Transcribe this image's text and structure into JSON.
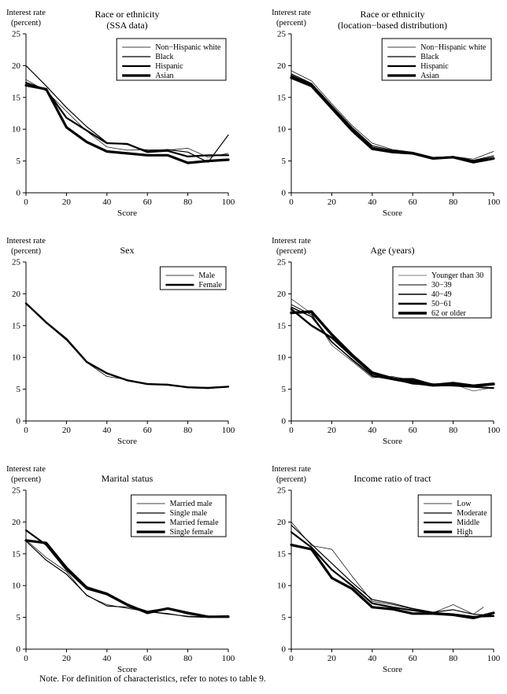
{
  "note": "Note. For definition of characteristics, refer to notes to table 9.",
  "line_color": "#000000",
  "background_color": "#ffffff",
  "chart_data": [
    {
      "type": "line",
      "title": "Race or ethnicity",
      "subtitle": "(SSA data)",
      "xlabel": "Score",
      "ylabel": [
        "Interest rate",
        "(percent)"
      ],
      "xlim": [
        0,
        100
      ],
      "ylim": [
        0,
        25
      ],
      "xticks": [
        0,
        20,
        40,
        60,
        80,
        100
      ],
      "yticks": [
        0,
        5,
        10,
        15,
        20,
        25
      ],
      "grid": false,
      "legend_position": "top-right",
      "x": [
        0,
        10,
        20,
        30,
        40,
        50,
        60,
        70,
        80,
        90,
        100
      ],
      "series": [
        {
          "name": "Non−Hispanic white",
          "line_width": 0.7,
          "values": [
            17.8,
            16.0,
            12.8,
            9.7,
            7.2,
            6.7,
            6.8,
            6.7,
            7.0,
            5.6,
            6.2
          ]
        },
        {
          "name": "Black",
          "line_width": 1.2,
          "values": [
            20.0,
            16.8,
            13.4,
            10.4,
            7.9,
            7.6,
            6.6,
            6.8,
            6.4,
            4.8,
            9.1
          ]
        },
        {
          "name": "Hispanic",
          "line_width": 2.2,
          "values": [
            17.3,
            16.2,
            11.8,
            9.8,
            7.8,
            7.7,
            6.4,
            6.6,
            5.7,
            5.9,
            5.9
          ]
        },
        {
          "name": "Asian",
          "line_width": 3.2,
          "values": [
            16.9,
            16.3,
            10.3,
            8.0,
            6.5,
            6.2,
            5.9,
            5.9,
            4.7,
            5.0,
            5.2
          ]
        }
      ]
    },
    {
      "type": "line",
      "title": "Race or ethnicity",
      "subtitle": "(location−based distribution)",
      "xlabel": "Score",
      "ylabel": [
        "Interest rate",
        "(percent)"
      ],
      "xlim": [
        0,
        100
      ],
      "ylim": [
        0,
        25
      ],
      "xticks": [
        0,
        20,
        40,
        60,
        80,
        100
      ],
      "yticks": [
        0,
        5,
        10,
        15,
        20,
        25
      ],
      "grid": false,
      "legend_position": "top-right",
      "x": [
        0,
        10,
        20,
        30,
        40,
        50,
        60,
        70,
        80,
        90,
        100
      ],
      "series": [
        {
          "name": "Non−Hispanic white",
          "line_width": 0.7,
          "values": [
            19.2,
            17.6,
            14.0,
            10.6,
            7.8,
            6.8,
            6.4,
            5.6,
            5.7,
            5.3,
            6.5
          ]
        },
        {
          "name": "Black",
          "line_width": 1.2,
          "values": [
            18.7,
            17.2,
            13.7,
            10.3,
            7.4,
            6.7,
            6.3,
            5.5,
            5.7,
            5.1,
            5.8
          ]
        },
        {
          "name": "Hispanic",
          "line_width": 2.2,
          "values": [
            18.4,
            17.0,
            13.5,
            10.0,
            7.1,
            6.5,
            6.3,
            5.5,
            5.6,
            5.0,
            5.5
          ]
        },
        {
          "name": "Asian",
          "line_width": 3.2,
          "values": [
            18.1,
            16.8,
            13.3,
            9.8,
            6.9,
            6.4,
            6.2,
            5.4,
            5.6,
            4.8,
            5.4
          ]
        }
      ]
    },
    {
      "type": "line",
      "title": "Sex",
      "subtitle": null,
      "xlabel": "Score",
      "ylabel": [
        "Interest rate",
        "(percent)"
      ],
      "xlim": [
        0,
        100
      ],
      "ylim": [
        0,
        25
      ],
      "xticks": [
        0,
        20,
        40,
        60,
        80,
        100
      ],
      "yticks": [
        0,
        5,
        10,
        15,
        20,
        25
      ],
      "grid": false,
      "legend_position": "top-right",
      "x": [
        0,
        10,
        20,
        30,
        40,
        50,
        60,
        70,
        80,
        90,
        100
      ],
      "series": [
        {
          "name": "Male",
          "line_width": 0.8,
          "values": [
            18.5,
            15.4,
            12.7,
            9.2,
            7.0,
            6.5,
            5.8,
            5.8,
            5.2,
            5.1,
            5.4
          ]
        },
        {
          "name": "Female",
          "line_width": 2.4,
          "values": [
            18.5,
            15.5,
            12.9,
            9.3,
            7.5,
            6.4,
            5.8,
            5.7,
            5.3,
            5.2,
            5.4
          ]
        }
      ]
    },
    {
      "type": "line",
      "title": "Age (years)",
      "subtitle": null,
      "xlabel": "Score",
      "ylabel": [
        "Interest rate",
        "(percent)"
      ],
      "xlim": [
        0,
        100
      ],
      "ylim": [
        0,
        25
      ],
      "xticks": [
        0,
        20,
        40,
        60,
        80,
        100
      ],
      "yticks": [
        0,
        5,
        10,
        15,
        20,
        25
      ],
      "grid": false,
      "legend_position": "top-right",
      "x": [
        0,
        10,
        20,
        30,
        40,
        50,
        60,
        70,
        80,
        90,
        100
      ],
      "series": [
        {
          "name": "Younger than 30",
          "line_width": 0.6,
          "values": [
            19.2,
            16.9,
            11.9,
            9.4,
            6.8,
            7.0,
            6.4,
            5.6,
            5.8,
            4.7,
            5.3
          ]
        },
        {
          "name": "30−39",
          "line_width": 1.0,
          "values": [
            18.3,
            16.7,
            12.5,
            9.6,
            7.0,
            6.6,
            5.8,
            5.6,
            5.5,
            5.3,
            5.1
          ]
        },
        {
          "name": "40−49",
          "line_width": 1.5,
          "values": [
            17.9,
            16.4,
            12.4,
            9.7,
            7.1,
            6.5,
            5.9,
            5.5,
            5.6,
            5.4,
            5.2
          ]
        },
        {
          "name": "50−61",
          "line_width": 2.4,
          "values": [
            17.6,
            15.0,
            13.1,
            10.2,
            7.4,
            6.6,
            6.6,
            5.7,
            6.0,
            5.6,
            5.9
          ]
        },
        {
          "name": "62 or older",
          "line_width": 3.4,
          "values": [
            17.0,
            17.2,
            13.6,
            10.4,
            7.6,
            6.7,
            6.2,
            5.7,
            5.7,
            5.5,
            5.8
          ]
        }
      ]
    },
    {
      "type": "line",
      "title": "Marital status",
      "subtitle": null,
      "xlabel": "Score",
      "ylabel": [
        "Interest rate",
        "(percent)"
      ],
      "xlim": [
        0,
        100
      ],
      "ylim": [
        0,
        25
      ],
      "xticks": [
        0,
        20,
        40,
        60,
        80,
        100
      ],
      "yticks": [
        0,
        5,
        10,
        15,
        20,
        25
      ],
      "grid": false,
      "legend_position": "top-right",
      "x": [
        0,
        10,
        20,
        30,
        40,
        50,
        60,
        70,
        80,
        90,
        100
      ],
      "series": [
        {
          "name": "Married male",
          "line_width": 0.7,
          "values": [
            17.2,
            14.4,
            12.2,
            8.4,
            7.0,
            6.4,
            5.9,
            5.5,
            5.2,
            5.1,
            5.3
          ]
        },
        {
          "name": "Single male",
          "line_width": 1.2,
          "values": [
            17.0,
            14.0,
            11.8,
            8.5,
            6.8,
            6.6,
            5.9,
            5.6,
            5.1,
            5.0,
            5.2
          ]
        },
        {
          "name": "Married female",
          "line_width": 2.2,
          "values": [
            18.7,
            16.4,
            12.5,
            9.5,
            8.6,
            6.9,
            5.9,
            6.4,
            5.6,
            5.1,
            5.2
          ]
        },
        {
          "name": "Single female",
          "line_width": 3.2,
          "values": [
            17.1,
            16.7,
            12.8,
            9.7,
            8.7,
            7.0,
            5.7,
            6.4,
            5.7,
            5.1,
            5.1
          ]
        }
      ]
    },
    {
      "type": "line",
      "title": "Income ratio of tract",
      "subtitle": null,
      "xlabel": "Score",
      "ylabel": [
        "Interest rate",
        "(percent)"
      ],
      "xlim": [
        0,
        100
      ],
      "ylim": [
        0,
        25
      ],
      "xticks": [
        0,
        20,
        40,
        60,
        80,
        100
      ],
      "yticks": [
        0,
        5,
        10,
        15,
        20,
        25
      ],
      "grid": false,
      "legend_position": "top-right",
      "x": [
        0,
        10,
        20,
        30,
        40,
        50,
        60,
        70,
        80,
        90,
        100
      ],
      "series": [
        {
          "name": "Low",
          "line_width": 0.7,
          "x": [
            0,
            10,
            20,
            30,
            40,
            50,
            60,
            70,
            80,
            90,
            95
          ],
          "values": [
            20.0,
            16.3,
            15.7,
            11.5,
            7.5,
            7.0,
            6.3,
            5.7,
            7.0,
            5.5,
            6.6
          ]
        },
        {
          "name": "Moderate",
          "line_width": 1.2,
          "values": [
            19.5,
            16.5,
            13.5,
            10.5,
            7.8,
            7.2,
            6.4,
            5.8,
            6.2,
            5.5,
            5.3
          ]
        },
        {
          "name": "Middle",
          "line_width": 2.2,
          "values": [
            18.4,
            16.0,
            12.5,
            10.0,
            7.2,
            6.6,
            6.1,
            5.7,
            5.5,
            5.1,
            5.2
          ]
        },
        {
          "name": "High",
          "line_width": 3.2,
          "values": [
            16.4,
            15.7,
            11.2,
            9.5,
            6.6,
            6.3,
            5.6,
            5.6,
            5.4,
            4.9,
            5.7
          ]
        }
      ]
    }
  ]
}
